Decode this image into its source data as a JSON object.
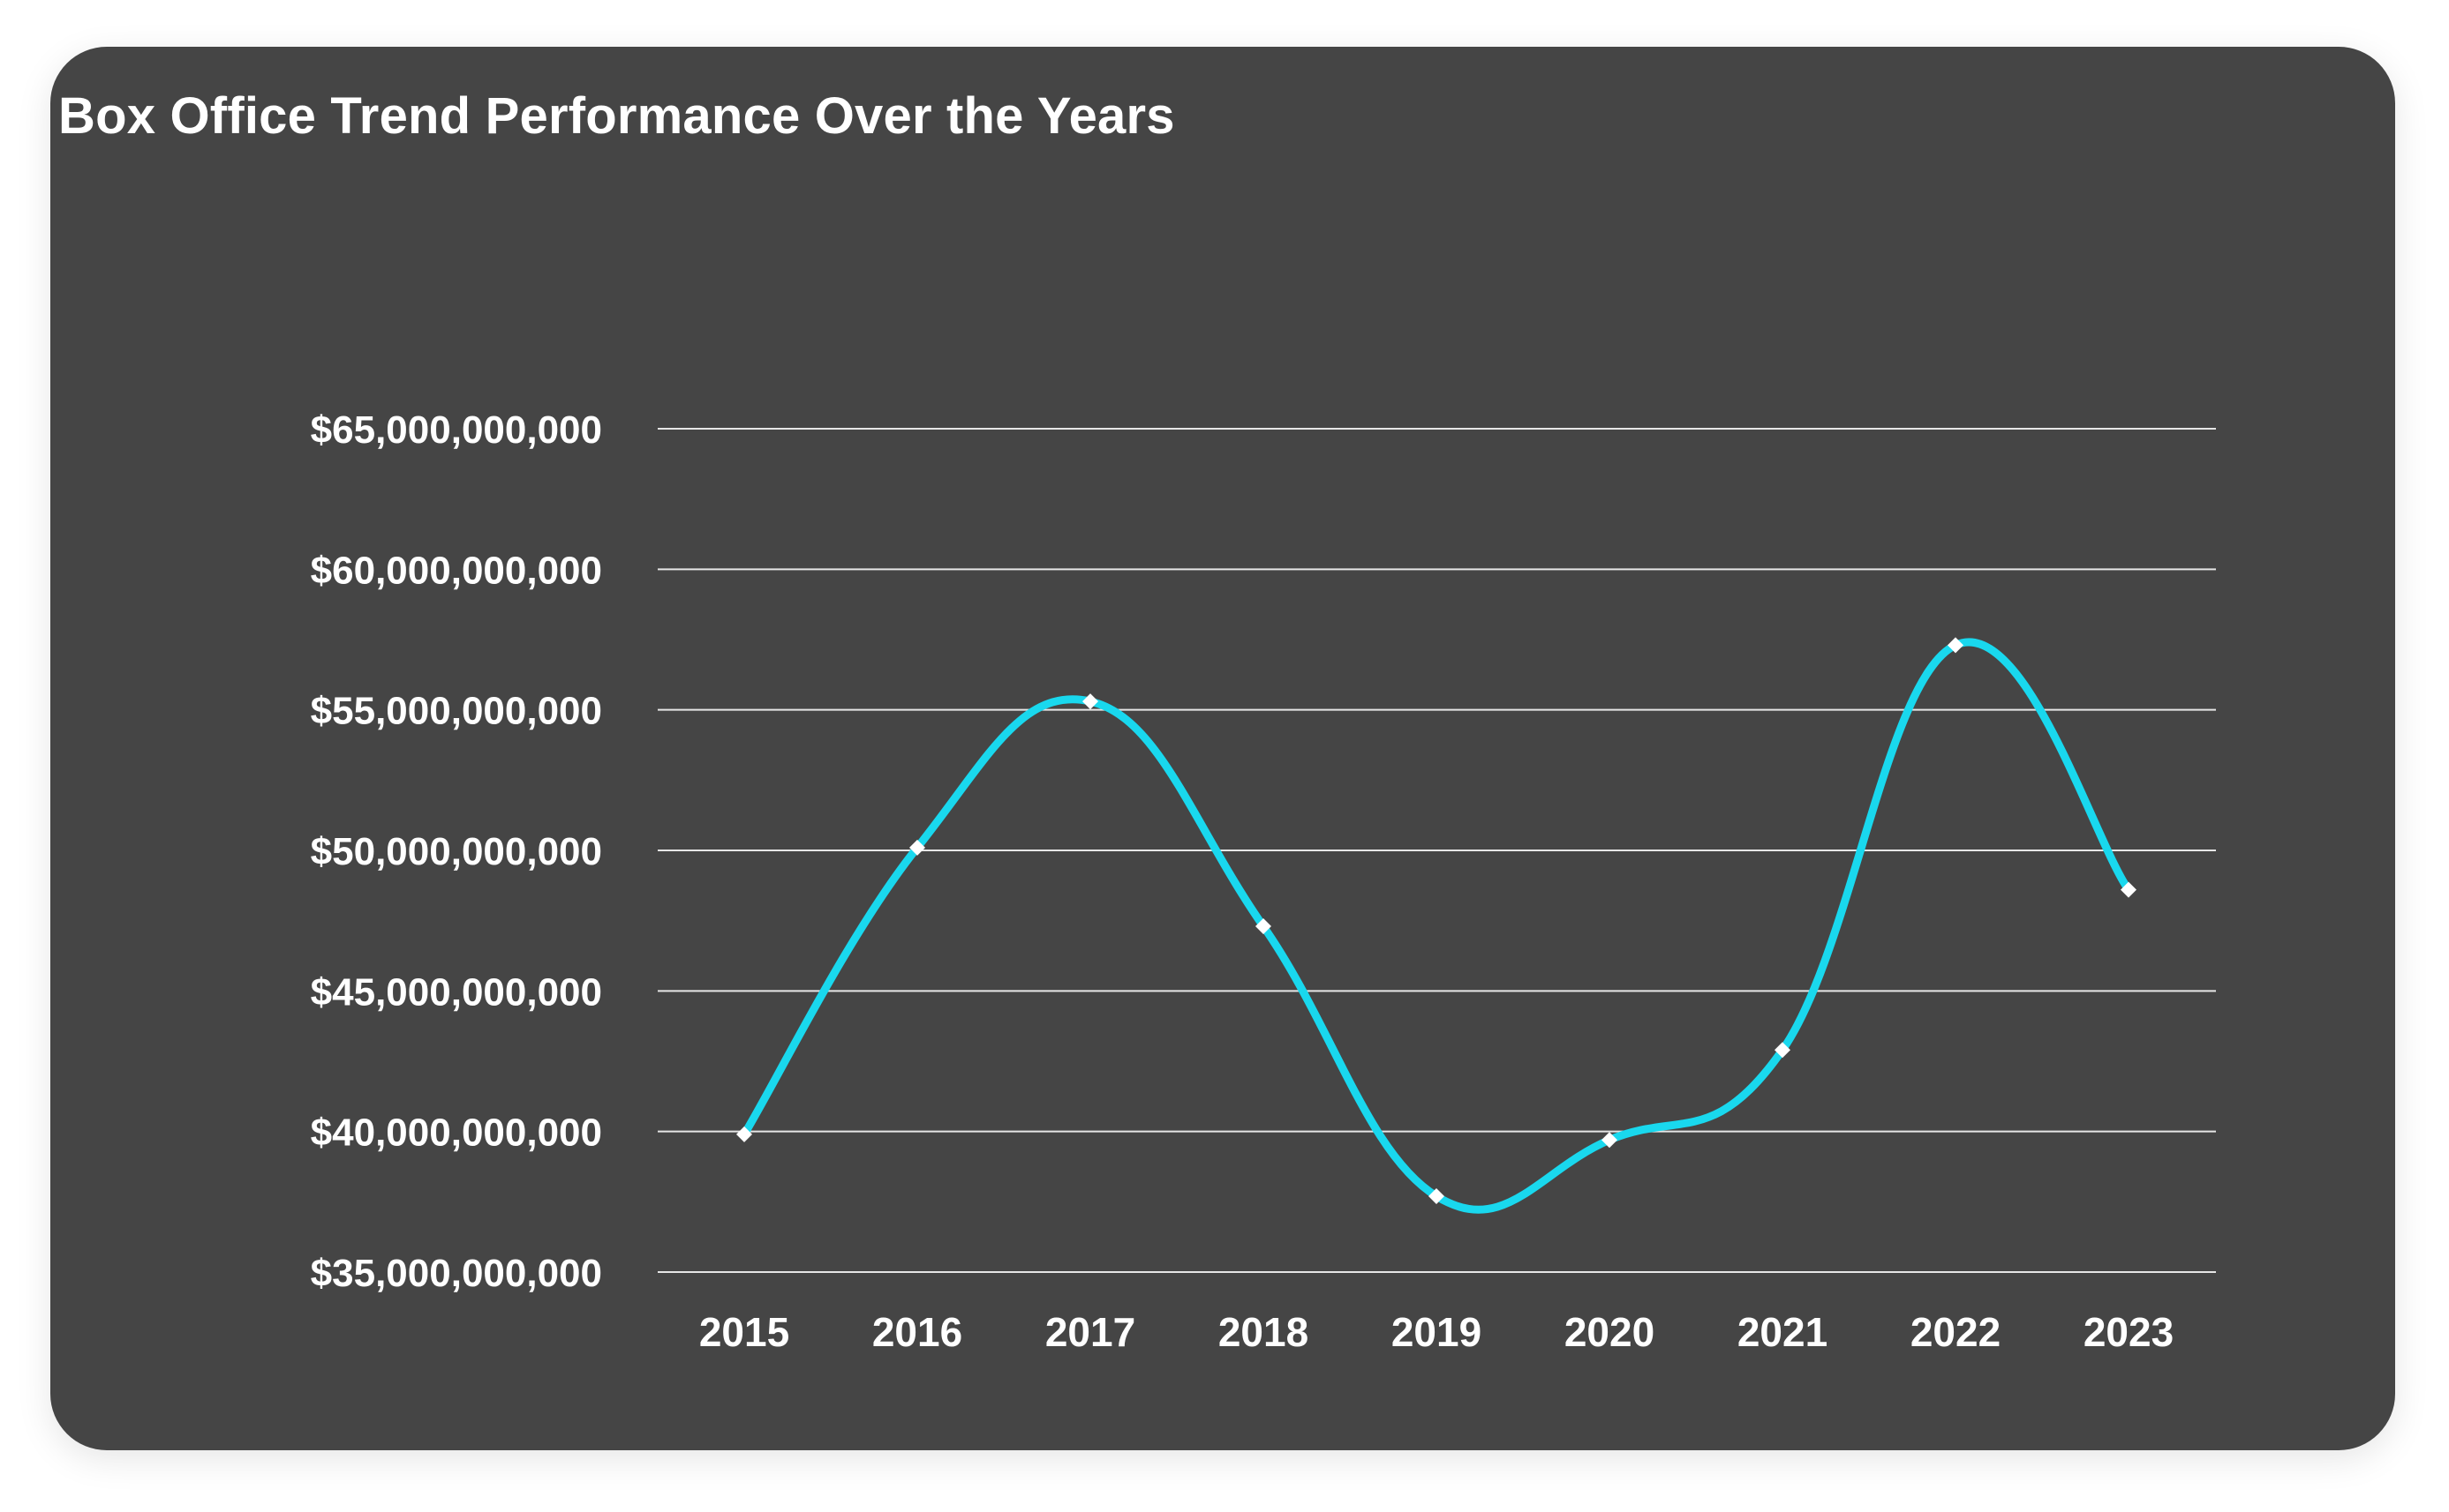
{
  "chart_data": {
    "type": "line",
    "title": "Box Office Trend Performance Over the Years",
    "xlabel": "",
    "ylabel": "",
    "categories": [
      "2015",
      "2016",
      "2017",
      "2018",
      "2019",
      "2020",
      "2021",
      "2022",
      "2023"
    ],
    "series": [
      {
        "values": [
          39900000000,
          50100000000,
          55300000000,
          47300000000,
          37700000000,
          39700000000,
          42900000000,
          57300000000,
          48600000000
        ]
      }
    ],
    "ylim": [
      35000000000,
      65000000000
    ],
    "y_ticks": [
      {
        "value": 65000000000,
        "label": "$65,000,000,000"
      },
      {
        "value": 60000000000,
        "label": "$60,000,000,000"
      },
      {
        "value": 55000000000,
        "label": "$55,000,000,000"
      },
      {
        "value": 50000000000,
        "label": "$50,000,000,000"
      },
      {
        "value": 45000000000,
        "label": "$45,000,000,000"
      },
      {
        "value": 40000000000,
        "label": "$40,000,000,000"
      },
      {
        "value": 35000000000,
        "label": "$35,000,000,000"
      }
    ],
    "grid": true,
    "smooth": true,
    "legend": "none",
    "colors": {
      "background": "#454545",
      "line": "#19D8EE",
      "marker": "#FFFFFF",
      "grid": "#E6E6E6",
      "text": "#FFFFFF"
    }
  }
}
